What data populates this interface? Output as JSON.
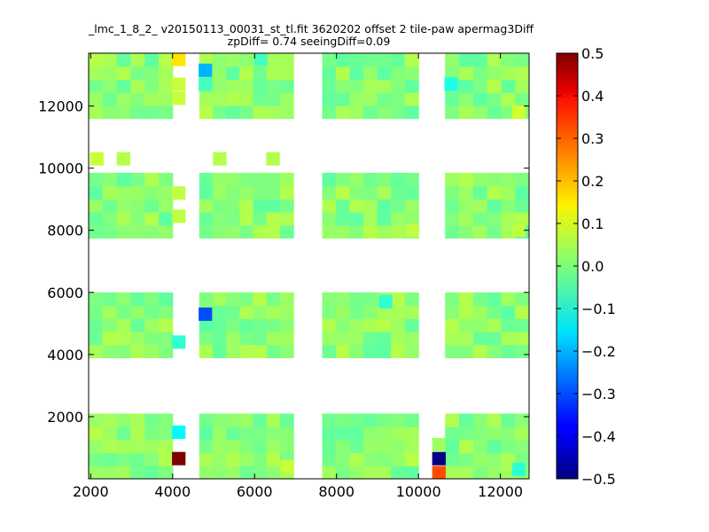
{
  "chart_data": {
    "type": "heatmap",
    "title": "_lmc_1_8_2_ v20150113_00031_st_tl.fit 3620202 offset 2 tile-paw apermag3Diff",
    "subtitle": "zpDiff= 0.74 seeingDiff=0.09",
    "xlabel": "",
    "ylabel": "",
    "xlim": [
      1950,
      12700
    ],
    "ylim": [
      0,
      13700
    ],
    "x_ticks": [
      2000,
      4000,
      6000,
      8000,
      10000,
      12000
    ],
    "y_ticks": [
      2000,
      4000,
      6000,
      8000,
      10000,
      12000
    ],
    "colorbar": {
      "range": [
        -0.5,
        0.5
      ],
      "ticks": [
        "0.5",
        "0.4",
        "0.3",
        "0.2",
        "0.1",
        "0.0",
        "−0.1",
        "−0.2",
        "−0.3",
        "−0.4",
        "−0.5"
      ],
      "colormap": "jet"
    },
    "cell_size": [
      330,
      430
    ],
    "column_groups": [
      {
        "x_start": 1950,
        "x_end": 4000,
        "cols": 6
      },
      {
        "x_start": 4650,
        "x_end": 6950,
        "cols": 7
      },
      {
        "x_start": 7650,
        "x_end": 10000,
        "cols": 7
      },
      {
        "x_start": 10650,
        "x_end": 12700,
        "cols": 6
      }
    ],
    "row_bands": [
      {
        "y_start": 0,
        "y_end": 2100,
        "rows": 5
      },
      {
        "y_start": 3900,
        "y_end": 6000,
        "rows": 5
      },
      {
        "y_start": 7750,
        "y_end": 9850,
        "rows": 5
      },
      {
        "y_start": 11600,
        "y_end": 13700,
        "rows": 5
      }
    ],
    "typical_value": 0.01,
    "special_cells": [
      {
        "x": 4150,
        "y": 650,
        "value": 0.5
      },
      {
        "x": 4150,
        "y": 1500,
        "value": -0.13
      },
      {
        "x": 10500,
        "y": 200,
        "value": 0.3
      },
      {
        "x": 10500,
        "y": 650,
        "value": -0.5
      },
      {
        "x": 10500,
        "y": 1100,
        "value": 0.03
      },
      {
        "x": 4150,
        "y": 4400,
        "value": -0.08
      },
      {
        "x": 4800,
        "y": 5300,
        "value": -0.3
      },
      {
        "x": 9200,
        "y": 5700,
        "value": -0.08
      },
      {
        "x": 12450,
        "y": 300,
        "value": -0.08
      },
      {
        "x": 4150,
        "y": 12700,
        "value": 0.07
      },
      {
        "x": 4150,
        "y": 12250,
        "value": 0.07
      },
      {
        "x": 4150,
        "y": 13500,
        "value": 0.15
      },
      {
        "x": 4800,
        "y": 13150,
        "value": -0.2
      },
      {
        "x": 4800,
        "y": 12700,
        "value": -0.06
      },
      {
        "x": 10800,
        "y": 12700,
        "value": -0.1
      },
      {
        "x": 6150,
        "y": 13500,
        "value": -0.06
      },
      {
        "x": 2150,
        "y": 10300,
        "value": 0.07
      },
      {
        "x": 2800,
        "y": 10300,
        "value": 0.05
      },
      {
        "x": 5150,
        "y": 10300,
        "value": 0.05
      },
      {
        "x": 6450,
        "y": 10300,
        "value": 0.05
      },
      {
        "x": 4150,
        "y": 9200,
        "value": 0.06
      },
      {
        "x": 4150,
        "y": 8450,
        "value": 0.06
      },
      {
        "x": 12450,
        "y": 8000,
        "value": 0.06
      },
      {
        "x": 9850,
        "y": 8000,
        "value": 0.06
      },
      {
        "x": 12450,
        "y": 11800,
        "value": 0.08
      },
      {
        "x": 6800,
        "y": 400,
        "value": 0.07
      }
    ]
  }
}
